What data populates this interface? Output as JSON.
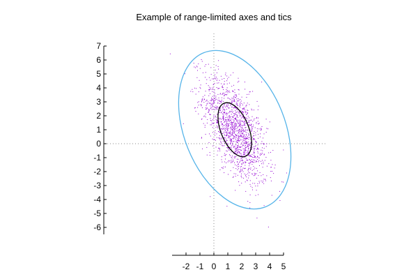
{
  "chart_data": {
    "type": "scatter",
    "title": "Example of range-limited axes and tics",
    "xlabel": "",
    "ylabel": "",
    "x_range_view": [
      -7.5,
      8
    ],
    "y_range_view": [
      -8,
      7.5
    ],
    "x_axis_range": [
      -3,
      5
    ],
    "y_axis_range": [
      -6.5,
      7
    ],
    "x_ticks": [
      -2,
      -1,
      0,
      1,
      2,
      3,
      4,
      5
    ],
    "y_ticks": [
      7,
      6,
      5,
      4,
      3,
      2,
      1,
      0,
      -1,
      -2,
      -3,
      -4,
      -5,
      -6
    ],
    "zero_axes": true,
    "grid": false,
    "legend": "none",
    "colors": {
      "points": "#9400d3",
      "outer_ellipse": "#56b4e9",
      "inner_ellipse": "#000000",
      "zero_axis": "#888888"
    },
    "distribution": {
      "center": [
        1.5,
        1.0
      ],
      "count": 1500,
      "cov": [
        [
          1.33,
          -1.35
        ],
        [
          -1.35,
          3.83
        ]
      ]
    },
    "ellipses": [
      {
        "name": "",
        "center": [
          1.5,
          1.0
        ],
        "semi_major": 5.95,
        "semi_minor": 3.62,
        "angle_deg": -68,
        "color": "#56b4e9"
      },
      {
        "name": "",
        "center": [
          1.5,
          1.0
        ],
        "semi_major": 2.05,
        "semi_minor": 1.0,
        "angle_deg": -68,
        "color": "#000000"
      }
    ]
  }
}
